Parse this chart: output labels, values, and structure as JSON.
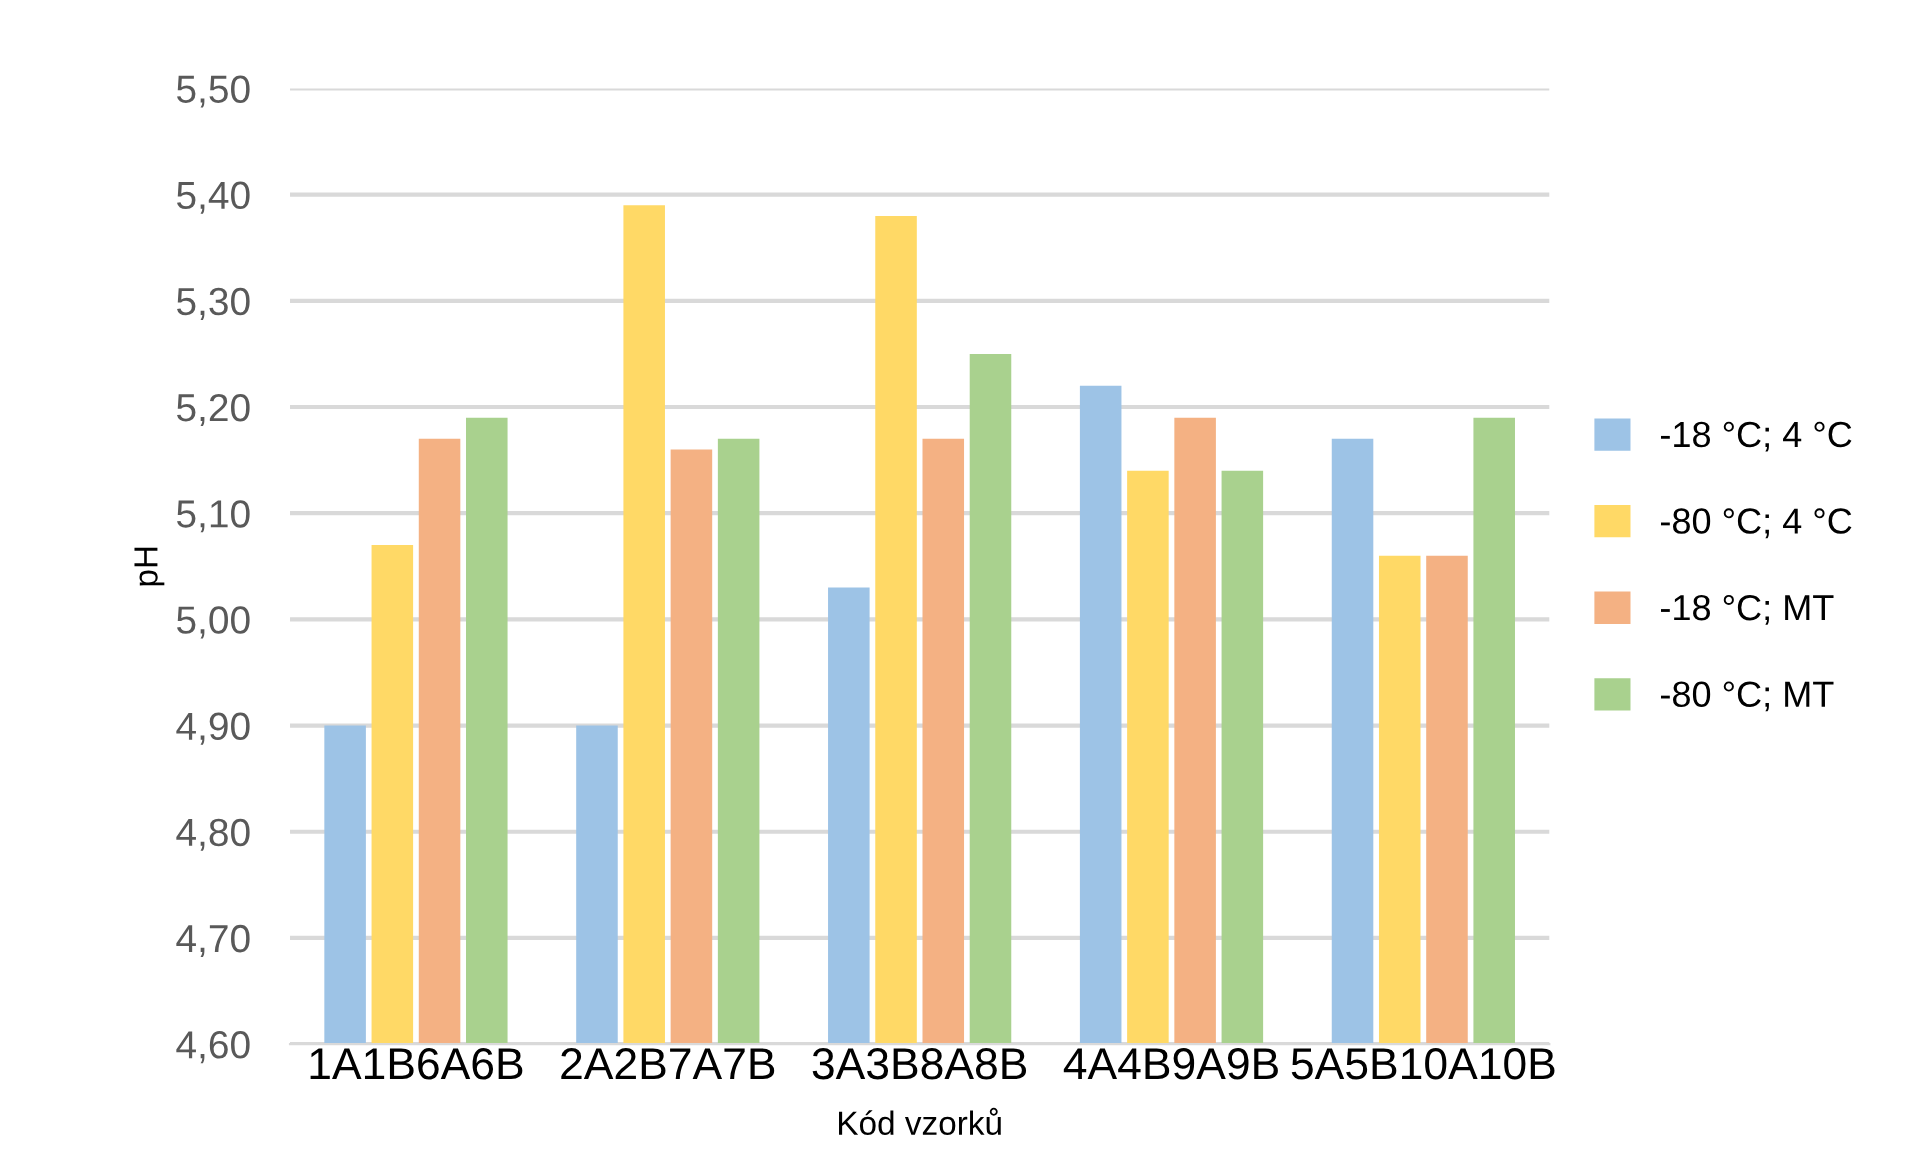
{
  "chart_data": {
    "type": "bar",
    "xlabel": "Kód vzorků",
    "ylabel": "pH",
    "categories": [
      "1A1B6A6B",
      "2A2B7A7B",
      "3A3B8A8B",
      "4A4B9A9B",
      "5A5B10A10B"
    ],
    "series": [
      {
        "name": "-18 °C; 4 °C",
        "color": "#9dc3e6",
        "values": [
          4.9,
          4.9,
          5.03,
          5.22,
          5.17
        ]
      },
      {
        "name": "-80 °C; 4 °C",
        "color": "#ffd966",
        "values": [
          5.07,
          5.39,
          5.38,
          5.14,
          5.06
        ]
      },
      {
        "name": "-18 °C; MT",
        "color": "#f4b183",
        "values": [
          5.17,
          5.16,
          5.17,
          5.19,
          5.06
        ]
      },
      {
        "name": "-80 °C; MT",
        "color": "#a9d18e",
        "values": [
          5.19,
          5.17,
          5.25,
          5.14,
          5.19
        ]
      }
    ],
    "ylim": [
      4.6,
      5.5
    ],
    "yticks": [
      {
        "value": 4.6,
        "label": "4,60"
      },
      {
        "value": 4.7,
        "label": "4,70"
      },
      {
        "value": 4.8,
        "label": "4,80"
      },
      {
        "value": 4.9,
        "label": "4,90"
      },
      {
        "value": 5.0,
        "label": "5,00"
      },
      {
        "value": 5.1,
        "label": "5,10"
      },
      {
        "value": 5.2,
        "label": "5,20"
      },
      {
        "value": 5.3,
        "label": "5,30"
      },
      {
        "value": 5.4,
        "label": "5,40"
      },
      {
        "value": 5.5,
        "label": "5,50"
      }
    ],
    "grid": "y",
    "legend": "right"
  }
}
